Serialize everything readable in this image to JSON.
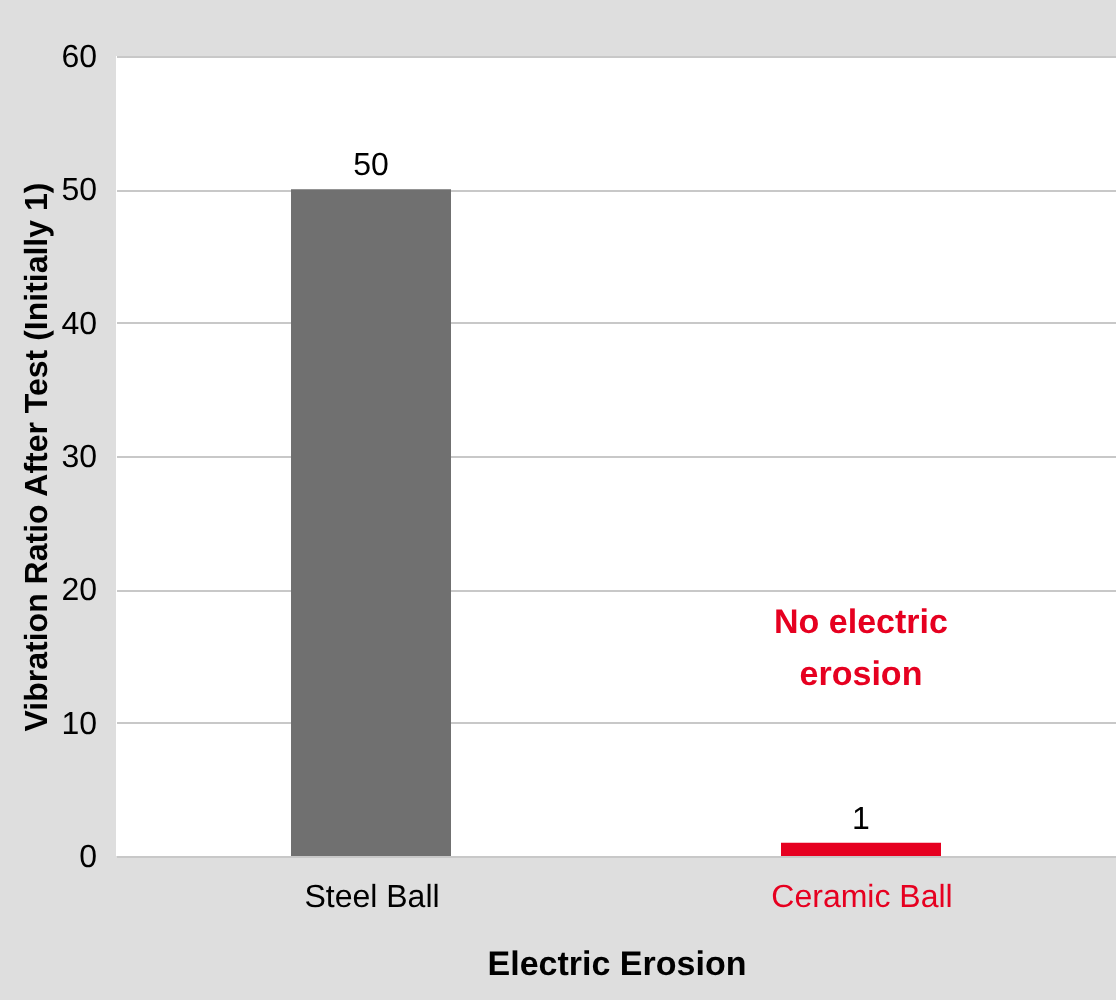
{
  "chart_data": {
    "type": "bar",
    "categories": [
      "Steel Ball",
      "Ceramic Ball"
    ],
    "values": [
      50,
      1
    ],
    "colors": [
      "#707070",
      "#e60020"
    ],
    "xlabel": "Electric Erosion",
    "ylabel": "Vibration Ratio After Test (Initially 1)",
    "ylim": [
      0,
      60
    ],
    "yticks": [
      0,
      10,
      20,
      30,
      40,
      50,
      60
    ],
    "grid": "y",
    "data_labels": true,
    "annotations": [
      "No electric erosion"
    ]
  }
}
